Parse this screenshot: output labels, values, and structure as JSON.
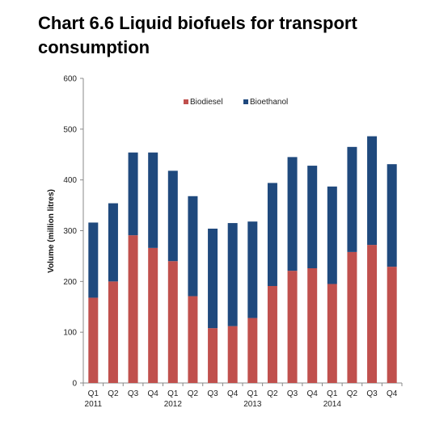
{
  "chart_data": {
    "type": "bar",
    "stacked": true,
    "title": "Chart 6.6 Liquid biofuels for transport consumption",
    "xlabel": "",
    "ylabel": "Volume (million litres)",
    "ylim": [
      0,
      600
    ],
    "yticks": [
      0,
      100,
      200,
      300,
      400,
      500,
      600
    ],
    "grid": false,
    "legend_placement": "top",
    "categories": [
      "Q1",
      "Q2",
      "Q3",
      "Q4",
      "Q1",
      "Q2",
      "Q3",
      "Q4",
      "Q1",
      "Q2",
      "Q3",
      "Q4",
      "Q1",
      "Q2",
      "Q3",
      "Q4"
    ],
    "year_labels": [
      {
        "index": 0,
        "label": "2011"
      },
      {
        "index": 4,
        "label": "2012"
      },
      {
        "index": 8,
        "label": "2013"
      },
      {
        "index": 12,
        "label": "2014"
      }
    ],
    "series": [
      {
        "name": "Biodiesel",
        "color": "#c0504d",
        "values": [
          168,
          200,
          291,
          266,
          240,
          171,
          108,
          112,
          128,
          191,
          221,
          226,
          195,
          258,
          272,
          229
        ]
      },
      {
        "name": "Bioethanol",
        "color": "#1f497d",
        "values": [
          148,
          154,
          163,
          188,
          178,
          197,
          196,
          203,
          190,
          203,
          224,
          202,
          192,
          207,
          214,
          202
        ]
      }
    ]
  }
}
